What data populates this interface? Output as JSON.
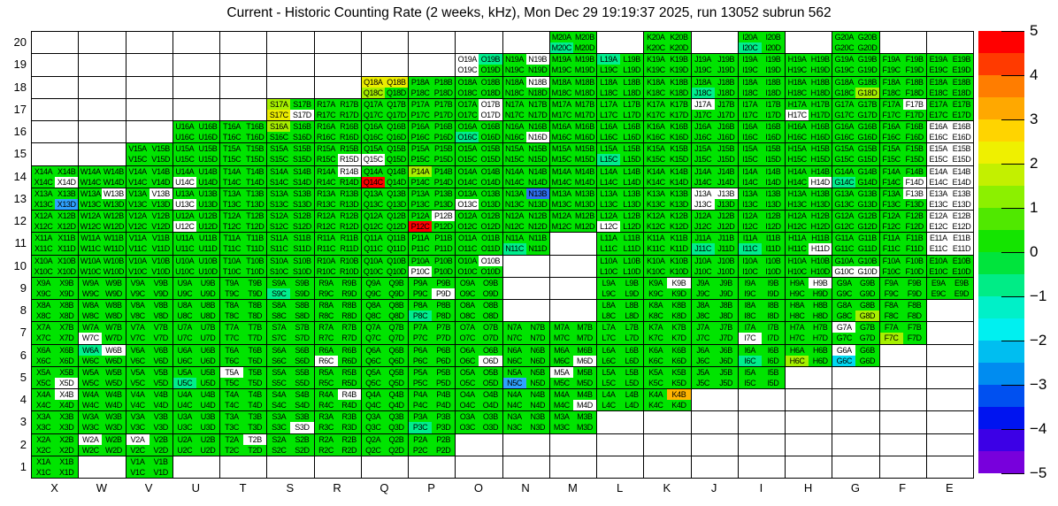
{
  "title": "Current - Historic Counting Rate (2 weeks, kHz), Mon Dec 29 19:19:37 2025, run 13052 subrun 562",
  "palette": {
    "g": "#00E400",
    "w": "#FFFFFF",
    "t": "#00EE8C",
    "c": "#00D8F0",
    "b1": "#2EA2FF",
    "b2": "#2F6FF0",
    "g2": "#A6F000",
    "y": "#ECEC00",
    "o": "#FFB400",
    "r": "#FF0000"
  },
  "colorbar": {
    "min": -5,
    "max": 5,
    "ticks": [
      "5",
      "4",
      "3",
      "2",
      "1",
      "0",
      "−1",
      "−2",
      "−3",
      "−4",
      "−5"
    ],
    "stops": [
      "#FF0000",
      "#FF3A00",
      "#FF7D00",
      "#FFA800",
      "#FFD400",
      "#EFF000",
      "#C3F000",
      "#8CF000",
      "#50E800",
      "#14E400",
      "#00E43C",
      "#00EC86",
      "#00F0C8",
      "#00F0F0",
      "#00BEF0",
      "#008CF0",
      "#0050F0",
      "#0014F0",
      "#3C00E6",
      "#7800DC"
    ]
  },
  "chart_data": {
    "type": "heatmap",
    "title": "Current - Historic Counting Rate (2 weeks, kHz), Mon Dec 29 19:19:37 2025, run 13052 subrun 562",
    "units": "kHz",
    "value_range": [
      -5,
      5
    ],
    "legend_position": "right",
    "x_categories": [
      "X",
      "W",
      "V",
      "U",
      "T",
      "S",
      "R",
      "Q",
      "P",
      "O",
      "N",
      "M",
      "L",
      "K",
      "J",
      "I",
      "H",
      "G",
      "F",
      "E"
    ],
    "y_categories": [
      "20",
      "19",
      "18",
      "17",
      "16",
      "15",
      "14",
      "13",
      "12",
      "11",
      "10",
      "9",
      "8",
      "7",
      "6",
      "5",
      "4",
      "3",
      "2",
      "1"
    ],
    "cell_scheme": "each present cell holds four quadrant channels labeled column+row+A|B|C|D (A top-left, B top-right, C bottom-left, D bottom-right)",
    "default_color_key": "g",
    "present_columns_by_row": {
      "20": [
        "M",
        "K",
        "I",
        "G"
      ],
      "19": [
        "O",
        "N",
        "M",
        "L",
        "K",
        "J",
        "I",
        "H",
        "G",
        "F",
        "E"
      ],
      "18": [
        "Q",
        "P",
        "O",
        "N",
        "M",
        "L",
        "K",
        "J",
        "I",
        "H",
        "G",
        "F",
        "E"
      ],
      "17": [
        "S",
        "R",
        "Q",
        "P",
        "O",
        "N",
        "M",
        "L",
        "K",
        "J",
        "I",
        "H",
        "G",
        "F",
        "E"
      ],
      "16": [
        "U",
        "T",
        "S",
        "R",
        "Q",
        "P",
        "O",
        "N",
        "M",
        "L",
        "K",
        "J",
        "I",
        "H",
        "G",
        "F",
        "E"
      ],
      "15": [
        "V",
        "U",
        "T",
        "S",
        "R",
        "Q",
        "P",
        "O",
        "N",
        "M",
        "L",
        "K",
        "J",
        "I",
        "H",
        "G",
        "F",
        "E"
      ],
      "14": [
        "X",
        "W",
        "V",
        "U",
        "T",
        "S",
        "R",
        "Q",
        "P",
        "O",
        "N",
        "M",
        "L",
        "K",
        "J",
        "I",
        "H",
        "G",
        "F",
        "E"
      ],
      "13": [
        "X",
        "W",
        "V",
        "U",
        "T",
        "S",
        "R",
        "Q",
        "P",
        "O",
        "N",
        "M",
        "L",
        "K",
        "J",
        "I",
        "H",
        "G",
        "F",
        "E"
      ],
      "12": [
        "X",
        "W",
        "V",
        "U",
        "T",
        "S",
        "R",
        "Q",
        "P",
        "O",
        "N",
        "M",
        "L",
        "K",
        "J",
        "I",
        "H",
        "G",
        "F",
        "E"
      ],
      "11": [
        "X",
        "W",
        "V",
        "U",
        "T",
        "S",
        "R",
        "Q",
        "P",
        "O",
        "N",
        "L",
        "K",
        "J",
        "I",
        "H",
        "G",
        "F",
        "E"
      ],
      "10": [
        "X",
        "W",
        "V",
        "U",
        "T",
        "S",
        "R",
        "Q",
        "P",
        "O",
        "L",
        "K",
        "J",
        "I",
        "H",
        "G",
        "F",
        "E"
      ],
      "9": [
        "X",
        "W",
        "V",
        "U",
        "T",
        "S",
        "R",
        "Q",
        "P",
        "O",
        "L",
        "K",
        "J",
        "I",
        "H",
        "G",
        "F",
        "E"
      ],
      "8": [
        "X",
        "W",
        "V",
        "U",
        "T",
        "S",
        "R",
        "Q",
        "P",
        "O",
        "L",
        "K",
        "J",
        "I",
        "H",
        "G",
        "F"
      ],
      "7": [
        "X",
        "W",
        "V",
        "U",
        "T",
        "S",
        "R",
        "Q",
        "P",
        "O",
        "N",
        "M",
        "L",
        "K",
        "J",
        "I",
        "H",
        "G",
        "F"
      ],
      "6": [
        "X",
        "W",
        "V",
        "U",
        "T",
        "S",
        "R",
        "Q",
        "P",
        "O",
        "N",
        "M",
        "L",
        "K",
        "J",
        "I",
        "H",
        "G"
      ],
      "5": [
        "X",
        "W",
        "V",
        "U",
        "T",
        "S",
        "R",
        "Q",
        "P",
        "O",
        "N",
        "M",
        "L",
        "K",
        "J",
        "I"
      ],
      "4": [
        "X",
        "W",
        "V",
        "U",
        "T",
        "S",
        "R",
        "Q",
        "P",
        "O",
        "N",
        "M",
        "L",
        "K"
      ],
      "3": [
        "X",
        "W",
        "V",
        "U",
        "T",
        "S",
        "R",
        "Q",
        "P",
        "O",
        "N",
        "M"
      ],
      "2": [
        "X",
        "W",
        "V",
        "U",
        "T",
        "S",
        "R",
        "Q",
        "P"
      ],
      "1": [
        "X",
        "V"
      ]
    },
    "quadrant_color_overrides": {
      "M20C": "t",
      "I20C": "t",
      "O19A": "w",
      "O19B": "t",
      "O19C": "w",
      "N19B": "w",
      "L19A": "t",
      "Q18A": "y",
      "Q18B": "y",
      "Q18C": "g2",
      "N18B": "w",
      "J18C": "t",
      "G18D": "g2",
      "S17A": "g2",
      "S17C": "y",
      "S17D": "w",
      "O17B": "w",
      "O17D": "w",
      "J17A": "w",
      "H17C": "w",
      "F17B": "w",
      "S16A": "g2",
      "O16C": "t",
      "N16D": "w",
      "E16A": "w",
      "E16B": "w",
      "E16C": "w",
      "E16D": "w",
      "R15D": "w",
      "Q15C": "w",
      "L15C": "t",
      "E15A": "w",
      "E15B": "w",
      "E15C": "w",
      "E15D": "w",
      "X14D": "w",
      "U14C": "w",
      "R14B": "w",
      "Q14C": "r",
      "P14A": "g2",
      "H14D": "w",
      "G14C": "t",
      "F14D": "w",
      "E14A": "w",
      "E14B": "w",
      "E14C": "w",
      "E14D": "w",
      "X13D": "b1",
      "W13B": "w",
      "V13B": "w",
      "U13C": "w",
      "O13C": "w",
      "N13B": "b2",
      "J13A": "w",
      "J13B": "w",
      "J13C": "w",
      "F13B": "w",
      "E13A": "w",
      "E13B": "w",
      "E13C": "w",
      "E13D": "w",
      "U12C": "w",
      "P12B": "w",
      "P12C": "r",
      "L12C": "w",
      "E12A": "w",
      "E12B": "w",
      "E12C": "w",
      "E12D": "w",
      "N11C": "t",
      "J11C": "t",
      "I11C": "t",
      "H11D": "w",
      "E11A": "w",
      "E11B": "w",
      "E11C": "w",
      "E11D": "w",
      "P10C": "w",
      "O10B": "w",
      "G10C": "w",
      "G10D": "w",
      "S9C": "t",
      "P9D": "w",
      "K9B": "w",
      "H9B": "w",
      "P8C": "t",
      "G8D": "g2",
      "W7C": "w",
      "I7C": "w",
      "G7A": "w",
      "F7C": "g2",
      "W6A": "t",
      "W6B": "w",
      "R6C": "w",
      "O6D": "w",
      "M6D": "w",
      "I6C": "t",
      "H6C": "g2",
      "G6A": "w",
      "G6C": "c",
      "X5D": "w",
      "U5C": "t",
      "T5A": "w",
      "N5C": "b1",
      "M5A": "w",
      "X4B": "w",
      "R4B": "w",
      "M4D": "w",
      "K4B": "o",
      "P3C": "t",
      "S3D": "w",
      "W2A": "w",
      "V2A": "w",
      "T2B": "w"
    }
  }
}
